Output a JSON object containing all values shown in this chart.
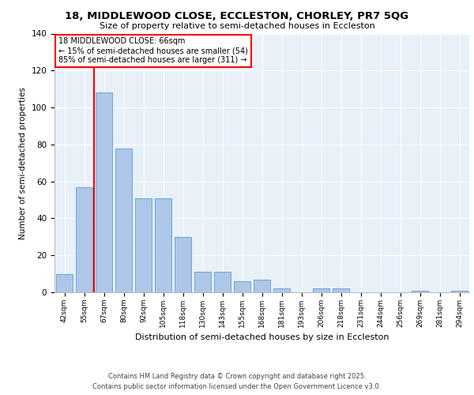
{
  "title1": "18, MIDDLEWOOD CLOSE, ECCLESTON, CHORLEY, PR7 5QG",
  "title2": "Size of property relative to semi-detached houses in Eccleston",
  "xlabel": "Distribution of semi-detached houses by size in Eccleston",
  "ylabel": "Number of semi-detached properties",
  "categories": [
    "42sqm",
    "55sqm",
    "67sqm",
    "80sqm",
    "92sqm",
    "105sqm",
    "118sqm",
    "130sqm",
    "143sqm",
    "155sqm",
    "168sqm",
    "181sqm",
    "193sqm",
    "206sqm",
    "218sqm",
    "231sqm",
    "244sqm",
    "256sqm",
    "269sqm",
    "281sqm",
    "294sqm"
  ],
  "values": [
    10,
    57,
    108,
    78,
    51,
    51,
    30,
    11,
    11,
    6,
    7,
    2,
    0,
    2,
    2,
    0,
    0,
    0,
    1,
    0,
    1
  ],
  "bar_color": "#aec6e8",
  "bar_edge_color": "#5a9fd4",
  "vline_color": "red",
  "annotation_title": "18 MIDDLEWOOD CLOSE: 66sqm",
  "annotation_line1": "← 15% of semi-detached houses are smaller (54)",
  "annotation_line2": "85% of semi-detached houses are larger (311) →",
  "annotation_box_color": "white",
  "annotation_box_edge": "red",
  "ylim": [
    0,
    140
  ],
  "yticks": [
    0,
    20,
    40,
    60,
    80,
    100,
    120,
    140
  ],
  "bg_color": "#e8f0f8",
  "footer1": "Contains HM Land Registry data © Crown copyright and database right 2025.",
  "footer2": "Contains public sector information licensed under the Open Government Licence v3.0."
}
